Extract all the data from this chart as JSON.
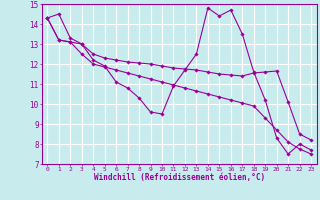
{
  "xlabel": "Windchill (Refroidissement éolien,°C)",
  "bg_color": "#c8ecee",
  "grid_color": "#ffffff",
  "line_color": "#990099",
  "xlim": [
    -0.5,
    23.5
  ],
  "ylim": [
    7,
    15
  ],
  "xticks": [
    0,
    1,
    2,
    3,
    4,
    5,
    6,
    7,
    8,
    9,
    10,
    11,
    12,
    13,
    14,
    15,
    16,
    17,
    18,
    19,
    20,
    21,
    22,
    23
  ],
  "yticks": [
    7,
    8,
    9,
    10,
    11,
    12,
    13,
    14,
    15
  ],
  "series": [
    [
      14.3,
      14.5,
      13.3,
      13.0,
      12.2,
      11.9,
      11.1,
      10.8,
      10.3,
      9.6,
      9.5,
      10.9,
      11.7,
      12.5,
      14.8,
      14.4,
      14.7,
      13.5,
      11.6,
      10.2,
      8.3,
      7.5,
      8.0,
      7.7
    ],
    [
      14.3,
      13.2,
      13.1,
      12.5,
      12.0,
      11.85,
      11.7,
      11.55,
      11.4,
      11.25,
      11.1,
      10.95,
      10.8,
      10.65,
      10.5,
      10.35,
      10.2,
      10.05,
      9.9,
      9.3,
      8.7,
      8.1,
      7.75,
      7.5
    ],
    [
      14.3,
      13.2,
      13.1,
      13.0,
      12.5,
      12.3,
      12.2,
      12.1,
      12.05,
      12.0,
      11.9,
      11.8,
      11.75,
      11.7,
      11.6,
      11.5,
      11.45,
      11.4,
      11.55,
      11.6,
      11.65,
      10.1,
      8.5,
      8.2
    ]
  ]
}
